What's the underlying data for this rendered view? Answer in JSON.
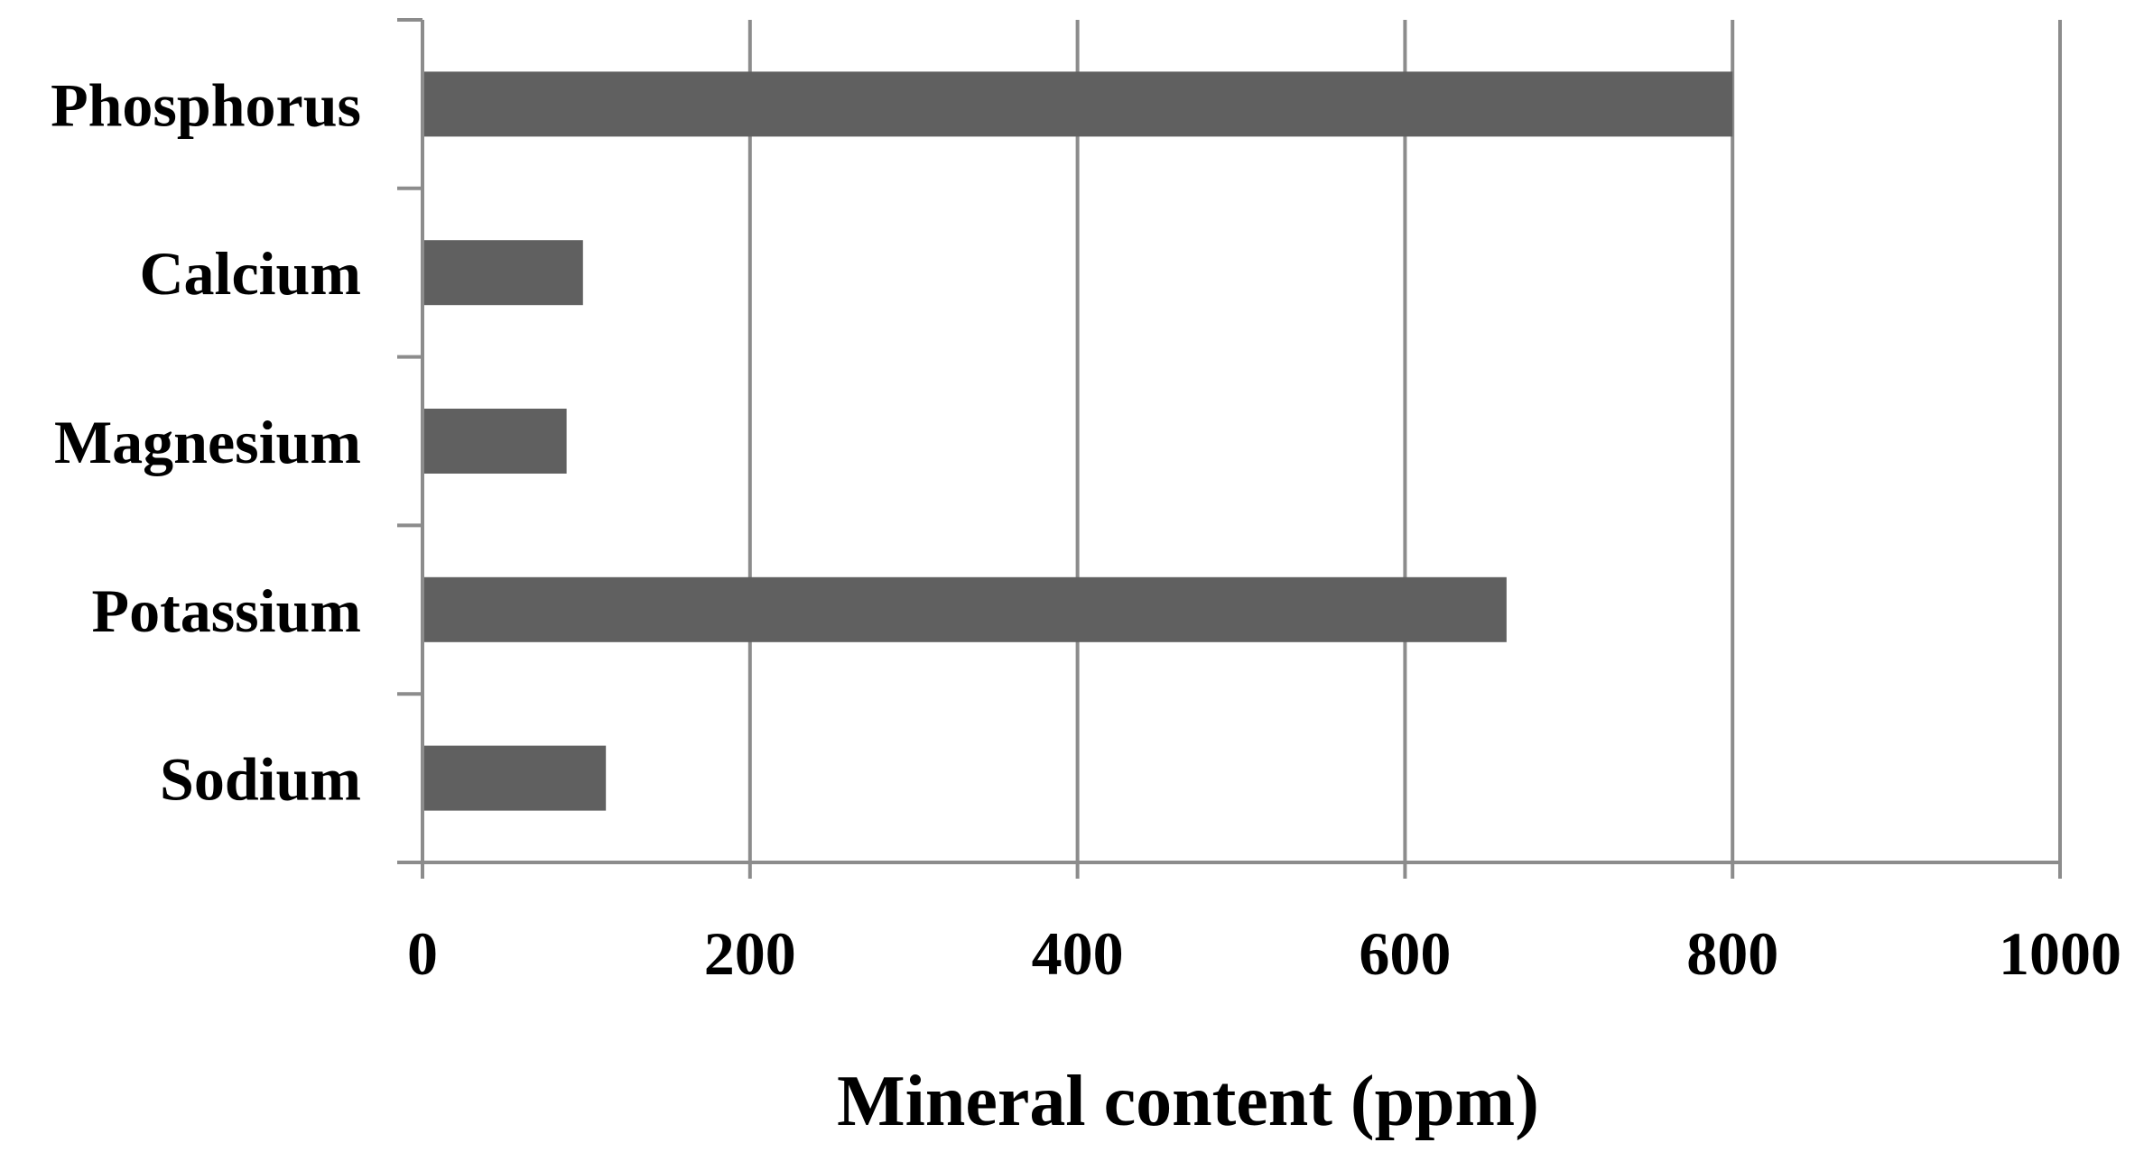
{
  "chart_data": {
    "type": "bar",
    "orientation": "horizontal",
    "categories": [
      "Phosphorus",
      "Calcium",
      "Magnesium",
      "Potassium",
      "Sodium"
    ],
    "values": [
      800,
      98,
      88,
      662,
      112
    ],
    "xlabel": "Mineral content (ppm)",
    "ylabel": "",
    "xlim": [
      0,
      1000
    ],
    "xticks": [
      "0",
      "200",
      "400",
      "600",
      "800",
      "1000"
    ],
    "grid": "vertical",
    "legend": "none",
    "colors": {
      "bar": "#606060",
      "grid": "#8c8c8c",
      "axis": "#8c8c8c",
      "text": "#000000"
    }
  }
}
